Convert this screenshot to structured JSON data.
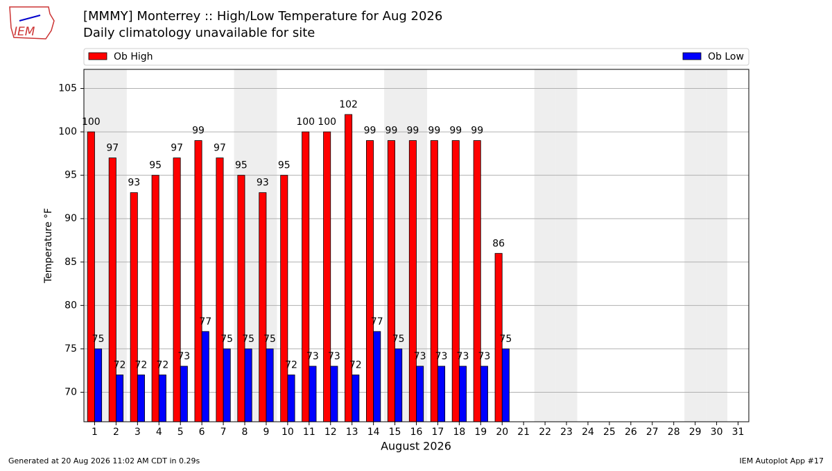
{
  "logo_text": "IEM",
  "footer": {
    "left": "Generated at 20 Aug 2026 11:02 AM CDT in 0.29s",
    "right": "IEM Autoplot App #17"
  },
  "chart_data": {
    "type": "bar",
    "title": "[MMMY] Monterrey :: High/Low Temperature for Aug 2026",
    "subtitle": "Daily climatology unavailable for site",
    "x_label": "August 2026",
    "y_label": "Temperature °F",
    "x": [
      1,
      2,
      3,
      4,
      5,
      6,
      7,
      8,
      9,
      10,
      11,
      12,
      13,
      14,
      15,
      16,
      17,
      18,
      19,
      20,
      21,
      22,
      23,
      24,
      25,
      26,
      27,
      28,
      29,
      30,
      31
    ],
    "xlim": [
      0.5,
      31.5
    ],
    "ylim": [
      66.6,
      107.2
    ],
    "yticks": [
      70,
      75,
      80,
      85,
      90,
      95,
      100,
      105
    ],
    "grid": true,
    "series": [
      {
        "name": "Ob High",
        "color": "#ff0000",
        "values": [
          100,
          97,
          93,
          95,
          97,
          99,
          97,
          95,
          93,
          95,
          100,
          100,
          102,
          99,
          99,
          99,
          99,
          99,
          99,
          86,
          null,
          null,
          null,
          null,
          null,
          null,
          null,
          null,
          null,
          null,
          null
        ]
      },
      {
        "name": "Ob Low",
        "color": "#0000ff",
        "values": [
          75,
          72,
          72,
          72,
          73,
          77,
          75,
          75,
          75,
          72,
          73,
          73,
          72,
          77,
          75,
          73,
          73,
          73,
          73,
          75,
          null,
          null,
          null,
          null,
          null,
          null,
          null,
          null,
          null,
          null,
          null
        ]
      }
    ]
  }
}
